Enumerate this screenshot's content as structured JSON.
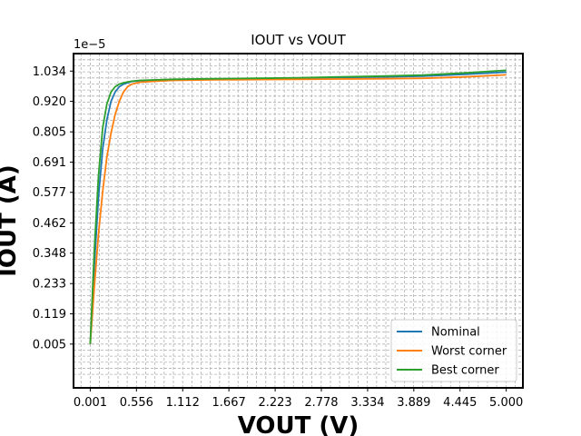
{
  "chart_data": {
    "type": "line",
    "title": "IOUT vs VOUT",
    "xlabel": "VOUT (V)",
    "ylabel": "IOUT (A)",
    "y_multiplier": "1e−5",
    "xlim": [
      -0.2,
      5.2
    ],
    "ylim": [
      -0.16,
      1.1
    ],
    "x_ticks": [
      "0.001",
      "0.556",
      "1.112",
      "1.667",
      "2.223",
      "2.778",
      "3.334",
      "3.889",
      "4.445",
      "5.000"
    ],
    "x_tick_values": [
      0.001,
      0.556,
      1.112,
      1.667,
      2.223,
      2.778,
      3.334,
      3.889,
      4.445,
      5.0
    ],
    "y_ticks": [
      "0.005",
      "0.119",
      "0.233",
      "0.348",
      "0.462",
      "0.577",
      "0.691",
      "0.805",
      "0.920",
      "1.034"
    ],
    "y_tick_values": [
      0.005,
      0.119,
      0.233,
      0.348,
      0.462,
      0.577,
      0.691,
      0.805,
      0.92,
      1.034
    ],
    "grid": true,
    "legend_position": "bottom-right",
    "series": [
      {
        "name": "Nominal",
        "color": "#1f77b4",
        "x": [
          0.001,
          0.05,
          0.1,
          0.15,
          0.2,
          0.25,
          0.3,
          0.35,
          0.4,
          0.5,
          0.6,
          0.8,
          1.0,
          1.5,
          2.0,
          2.5,
          3.0,
          3.5,
          4.0,
          4.5,
          5.0
        ],
        "y": [
          0.005,
          0.3,
          0.56,
          0.74,
          0.85,
          0.92,
          0.955,
          0.975,
          0.985,
          0.995,
          0.998,
          1.0,
          1.002,
          1.004,
          1.006,
          1.008,
          1.01,
          1.012,
          1.015,
          1.022,
          1.03
        ]
      },
      {
        "name": "Worst corner",
        "color": "#ff7f0e",
        "x": [
          0.001,
          0.05,
          0.1,
          0.15,
          0.2,
          0.25,
          0.3,
          0.35,
          0.4,
          0.45,
          0.5,
          0.6,
          0.8,
          1.0,
          1.5,
          2.0,
          2.5,
          3.0,
          3.5,
          4.0,
          4.5,
          5.0
        ],
        "y": [
          0.005,
          0.22,
          0.42,
          0.58,
          0.71,
          0.8,
          0.87,
          0.92,
          0.955,
          0.975,
          0.985,
          0.992,
          0.996,
          0.999,
          1.001,
          1.002,
          1.003,
          1.004,
          1.005,
          1.007,
          1.012,
          1.02
        ]
      },
      {
        "name": "Best corner",
        "color": "#2ca02c",
        "x": [
          0.001,
          0.05,
          0.1,
          0.15,
          0.2,
          0.25,
          0.3,
          0.35,
          0.4,
          0.5,
          0.6,
          0.8,
          1.0,
          1.5,
          2.0,
          2.5,
          3.0,
          3.5,
          4.0,
          4.5,
          5.0
        ],
        "y": [
          0.005,
          0.36,
          0.64,
          0.82,
          0.91,
          0.955,
          0.975,
          0.985,
          0.99,
          0.996,
          0.999,
          1.001,
          1.003,
          1.005,
          1.007,
          1.009,
          1.012,
          1.015,
          1.019,
          1.027,
          1.037
        ]
      }
    ]
  }
}
